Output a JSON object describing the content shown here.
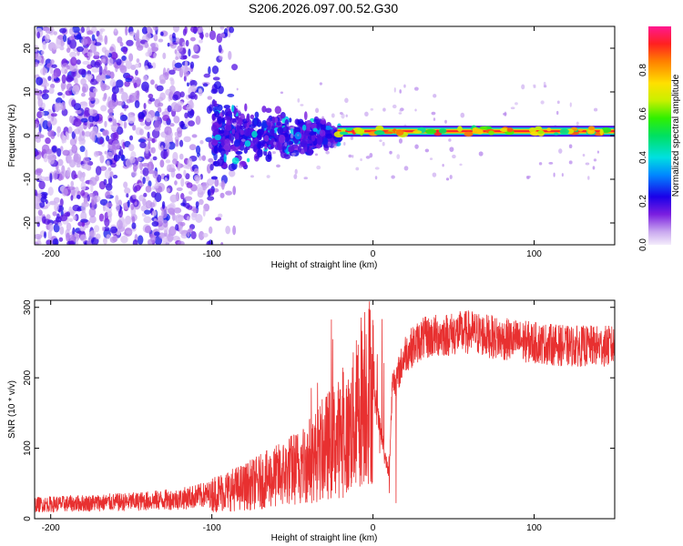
{
  "figure_title": "S206.2026.097.00.52.G30",
  "chart_data": [
    {
      "type": "heatmap",
      "name": "spectrogram",
      "xlabel": "Height of straight line (km)",
      "ylabel": "Frequency (Hz)",
      "xlim": [
        -210,
        150
      ],
      "ylim": [
        -25,
        25
      ],
      "x_ticks": [
        -200,
        -100,
        0,
        100
      ],
      "y_ticks": [
        -20,
        -10,
        0,
        10,
        20
      ],
      "colorbar": {
        "label": "Normalized spectral amplitude",
        "range": [
          0,
          1
        ],
        "ticks": [
          0.0,
          0.2,
          0.4,
          0.6,
          0.8
        ]
      },
      "features": [
        {
          "name": "noise region",
          "x_range": [
            -210,
            -90
          ],
          "freq_range": [
            -25,
            25
          ],
          "amplitude": "0.05-0.25"
        },
        {
          "name": "transition region",
          "x_range": [
            -100,
            -20
          ],
          "freq_range": [
            -10,
            10
          ],
          "amplitude": "0.15-0.35"
        },
        {
          "name": "signal line",
          "x_range": [
            -20,
            150
          ],
          "center_freq_hz": 1,
          "amplitude": "0.8-1.0"
        }
      ]
    },
    {
      "type": "line",
      "name": "snr",
      "xlabel": "Height of straight line (km)",
      "ylabel": "SNR (10 * v/v)",
      "xlim": [
        -210,
        150
      ],
      "ylim": [
        0,
        310
      ],
      "x_ticks": [
        -200,
        -100,
        0,
        100
      ],
      "y_ticks": [
        0,
        100,
        200,
        300
      ],
      "color": "#e83030",
      "series": [
        {
          "name": "SNR",
          "x": [
            -210,
            -180,
            -150,
            -120,
            -100,
            -80,
            -60,
            -45,
            -35,
            -25,
            -15,
            -10,
            -5,
            0,
            5,
            10,
            12,
            15,
            20,
            30,
            40,
            60,
            80,
            100,
            120,
            150
          ],
          "y": [
            20,
            22,
            24,
            28,
            35,
            45,
            60,
            75,
            90,
            110,
            120,
            150,
            190,
            180,
            120,
            60,
            190,
            200,
            235,
            255,
            260,
            265,
            255,
            250,
            245,
            245
          ]
        }
      ]
    }
  ]
}
